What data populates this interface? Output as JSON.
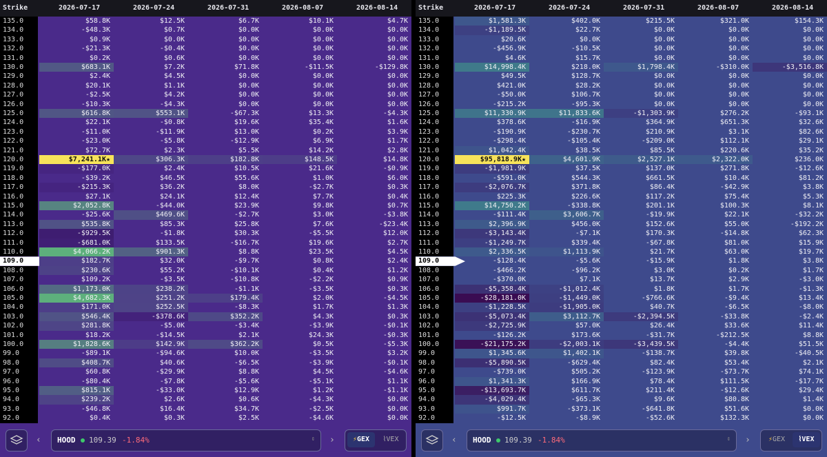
{
  "strike_header": "Strike",
  "footer": {
    "ticker": "HOOD",
    "price": "109.39",
    "change": "-1.84%",
    "modes": [
      "GEX",
      "VEX"
    ]
  },
  "panels": [
    {
      "active": "GEX",
      "dates": [
        "2026-07-17",
        "2026-07-24",
        "2026-07-31",
        "2026-08-07",
        "2026-08-14"
      ],
      "rows": [
        [
          "135.0",
          "$58.8K",
          "$12.5K",
          "$6.7K",
          "$10.1K",
          "$4.7K"
        ],
        [
          "134.0",
          "-$48.3K",
          "$0.7K",
          "$0.0K",
          "$0.0K",
          "$0.0K"
        ],
        [
          "133.0",
          "$0.9K",
          "$0.0K",
          "$0.0K",
          "$0.0K",
          "$0.0K"
        ],
        [
          "132.0",
          "-$21.3K",
          "-$0.4K",
          "$0.0K",
          "$0.0K",
          "$0.0K"
        ],
        [
          "131.0",
          "$0.2K",
          "$0.6K",
          "$0.0K",
          "$0.0K",
          "$0.0K"
        ],
        [
          "130.0",
          "$683.1K",
          "$7.2K",
          "$71.8K",
          "-$11.5K",
          "-$129.8K"
        ],
        [
          "129.0",
          "$2.4K",
          "$4.5K",
          "$0.0K",
          "$0.0K",
          "$0.0K"
        ],
        [
          "128.0",
          "$20.1K",
          "$1.1K",
          "$0.0K",
          "$0.0K",
          "$0.0K"
        ],
        [
          "127.0",
          "-$2.5K",
          "$4.2K",
          "$0.0K",
          "$0.0K",
          "$0.0K"
        ],
        [
          "126.0",
          "-$10.3K",
          "-$4.3K",
          "$0.0K",
          "$0.0K",
          "$0.0K"
        ],
        [
          "125.0",
          "$616.8K",
          "$553.1K",
          "-$67.3K",
          "$13.3K",
          "-$4.3K"
        ],
        [
          "124.0",
          "$22.1K",
          "-$0.8K",
          "$19.6K",
          "$35.4K",
          "$1.6K"
        ],
        [
          "123.0",
          "-$11.0K",
          "-$11.9K",
          "$13.0K",
          "$0.2K",
          "$3.9K"
        ],
        [
          "122.0",
          "-$23.0K",
          "-$5.8K",
          "-$12.9K",
          "$6.9K",
          "$1.7K"
        ],
        [
          "121.0",
          "$72.7K",
          "$2.3K",
          "$5.5K",
          "$14.2K",
          "$2.8K"
        ],
        [
          "120.0",
          "$7,241.1K★",
          "$306.3K",
          "$182.8K",
          "$148.5K",
          "$14.8K"
        ],
        [
          "119.0",
          "-$177.0K",
          "$2.4K",
          "$10.5K",
          "$21.6K",
          "-$0.9K"
        ],
        [
          "118.0",
          "-$39.2K",
          "$46.5K",
          "$55.6K",
          "$1.0K",
          "$6.0K"
        ],
        [
          "117.0",
          "-$215.3K",
          "$36.2K",
          "$8.0K",
          "-$2.7K",
          "$0.3K"
        ],
        [
          "116.0",
          "$27.1K",
          "$24.1K",
          "$12.4K",
          "$7.7K",
          "$0.4K"
        ],
        [
          "115.0",
          "$2,052.8K",
          "-$44.0K",
          "$23.9K",
          "$9.8K",
          "$0.7K"
        ],
        [
          "114.0",
          "-$25.6K",
          "$469.6K",
          "-$2.7K",
          "$3.0K",
          "-$3.8K"
        ],
        [
          "113.0",
          "$535.8K",
          "$85.3K",
          "$25.8K",
          "$7.6K",
          "-$23.4K"
        ],
        [
          "112.0",
          "-$929.5K",
          "-$1.8K",
          "$30.3K",
          "-$5.5K",
          "$12.0K"
        ],
        [
          "111.0",
          "-$681.0K",
          "$133.5K",
          "-$16.7K",
          "$19.6K",
          "$2.7K"
        ],
        [
          "110.0",
          "$4,066.2K",
          "$901.3K",
          "$8.8K",
          "$23.5K",
          "$4.5K"
        ],
        [
          "109.0",
          "$182.7K",
          "$32.0K",
          "-$9.7K",
          "$0.8K",
          "$2.4K"
        ],
        [
          "108.0",
          "$230.6K",
          "$55.2K",
          "-$10.1K",
          "$0.4K",
          "$1.2K"
        ],
        [
          "107.0",
          "$109.2K",
          "-$3.5K",
          "-$10.8K",
          "-$2.2K",
          "$0.9K"
        ],
        [
          "106.0",
          "$1,173.0K",
          "$238.2K",
          "-$1.1K",
          "-$3.5K",
          "$0.3K"
        ],
        [
          "105.0",
          "$4,682.3K",
          "$251.2K",
          "$179.4K",
          "$2.0K",
          "-$4.5K"
        ],
        [
          "104.0",
          "$171.0K",
          "$252.5K",
          "-$8.3K",
          "$1.7K",
          "$1.3K"
        ],
        [
          "103.0",
          "$546.4K",
          "-$378.6K",
          "$352.2K",
          "$4.3K",
          "$0.3K"
        ],
        [
          "102.0",
          "$281.8K",
          "-$5.0K",
          "-$3.4K",
          "-$3.9K",
          "-$0.1K"
        ],
        [
          "101.0",
          "$18.2K",
          "-$14.5K",
          "$2.1K",
          "$24.3K",
          "-$0.3K"
        ],
        [
          "100.0",
          "$1,828.6K",
          "$142.9K",
          "$362.2K",
          "$0.5K",
          "-$5.3K"
        ],
        [
          "99.0",
          "-$89.1K",
          "-$94.6K",
          "$10.0K",
          "-$3.5K",
          "$3.2K"
        ],
        [
          "98.0",
          "$408.7K",
          "$40.6K",
          "-$6.5K",
          "-$3.9K",
          "-$0.1K"
        ],
        [
          "97.0",
          "$60.8K",
          "-$29.9K",
          "$8.8K",
          "$4.5K",
          "-$4.6K"
        ],
        [
          "96.0",
          "-$80.4K",
          "-$7.8K",
          "-$5.6K",
          "-$5.1K",
          "$1.1K"
        ],
        [
          "95.0",
          "$815.1K",
          "-$33.0K",
          "$12.9K",
          "$1.2K",
          "-$1.1K"
        ],
        [
          "94.0",
          "$239.2K",
          "$2.6K",
          "$0.6K",
          "-$4.3K",
          "$0.0K"
        ],
        [
          "93.0",
          "-$46.8K",
          "$16.4K",
          "$34.7K",
          "-$2.5K",
          "$0.0K"
        ],
        [
          "92.0",
          "$0.4K",
          "$0.3K",
          "$2.5K",
          "-$4.6K",
          "$0.0K"
        ]
      ]
    },
    {
      "active": "VEX",
      "dates": [
        "2026-07-17",
        "2026-07-24",
        "2026-07-31",
        "2026-08-07",
        "2026-08-14"
      ],
      "rows": [
        [
          "135.0",
          "$1,581.3K",
          "$402.0K",
          "$215.5K",
          "$321.0K",
          "$154.3K"
        ],
        [
          "134.0",
          "-$1,189.5K",
          "$22.7K",
          "$0.0K",
          "$0.0K",
          "$0.0K"
        ],
        [
          "133.0",
          "$20.6K",
          "$0.0K",
          "$0.0K",
          "$0.0K",
          "$0.0K"
        ],
        [
          "132.0",
          "-$456.9K",
          "-$10.5K",
          "$0.0K",
          "$0.0K",
          "$0.0K"
        ],
        [
          "131.0",
          "$4.6K",
          "$15.7K",
          "$0.0K",
          "$0.0K",
          "$0.0K"
        ],
        [
          "130.0",
          "$14,998.4K",
          "$218.0K",
          "$1,798.4K",
          "-$310.0K",
          "-$3,516.8K"
        ],
        [
          "129.0",
          "$49.5K",
          "$128.7K",
          "$0.0K",
          "$0.0K",
          "$0.0K"
        ],
        [
          "128.0",
          "$421.0K",
          "$28.2K",
          "$0.0K",
          "$0.0K",
          "$0.0K"
        ],
        [
          "127.0",
          "-$50.0K",
          "$106.7K",
          "$0.0K",
          "$0.0K",
          "$0.0K"
        ],
        [
          "126.0",
          "-$215.2K",
          "-$95.3K",
          "$0.0K",
          "$0.0K",
          "$0.0K"
        ],
        [
          "125.0",
          "$11,330.9K",
          "$11,833.6K",
          "-$1,303.9K",
          "$276.2K",
          "-$93.1K"
        ],
        [
          "124.0",
          "$378.6K",
          "-$16.9K",
          "$364.9K",
          "$651.3K",
          "$32.6K"
        ],
        [
          "123.0",
          "-$190.9K",
          "-$230.7K",
          "$210.9K",
          "$3.1K",
          "$82.6K"
        ],
        [
          "122.0",
          "-$298.4K",
          "-$105.4K",
          "-$209.0K",
          "$112.1K",
          "$29.1K"
        ],
        [
          "121.0",
          "$1,042.4K",
          "$38.5K",
          "$85.5K",
          "$220.6K",
          "$35.2K"
        ],
        [
          "120.0",
          "$95,818.9K★",
          "$4,601.9K",
          "$2,527.1K",
          "$2,322.0K",
          "$236.0K"
        ],
        [
          "119.0",
          "-$1,981.9K",
          "$37.5K",
          "$137.0K",
          "$271.8K",
          "-$12.6K"
        ],
        [
          "118.0",
          "-$591.0K",
          "$544.3K",
          "$661.5K",
          "$10.4K",
          "$81.2K"
        ],
        [
          "117.0",
          "-$2,076.7K",
          "$371.8K",
          "$86.4K",
          "-$42.9K",
          "$3.8K"
        ],
        [
          "116.0",
          "$225.3K",
          "$226.6K",
          "$117.2K",
          "$75.4K",
          "$5.3K"
        ],
        [
          "115.0",
          "$14,750.2K",
          "-$338.8K",
          "$201.1K",
          "$100.3K",
          "$8.1K"
        ],
        [
          "114.0",
          "-$111.4K",
          "$3,606.7K",
          "-$19.9K",
          "$22.1K",
          "-$32.2K"
        ],
        [
          "113.0",
          "$2,396.9K",
          "$456.0K",
          "$152.6K",
          "$55.0K",
          "-$192.2K"
        ],
        [
          "112.0",
          "-$3,143.4K",
          "-$7.1K",
          "$170.3K",
          "-$14.8K",
          "$62.3K"
        ],
        [
          "111.0",
          "-$1,249.7K",
          "$339.4K",
          "-$67.8K",
          "$81.0K",
          "$15.9K"
        ],
        [
          "110.0",
          "$2,336.5K",
          "$1,113.9K",
          "$21.7K",
          "$63.0K",
          "$19.7K"
        ],
        [
          "109.0",
          "-$128.4K",
          "-$5.6K",
          "-$15.9K",
          "$1.8K",
          "$3.8K"
        ],
        [
          "108.0",
          "-$466.2K",
          "-$96.2K",
          "$3.0K",
          "$0.2K",
          "$1.7K"
        ],
        [
          "107.0",
          "-$370.0K",
          "$7.1K",
          "$13.7K",
          "$2.9K",
          "-$3.0K"
        ],
        [
          "106.0",
          "-$5,358.4K",
          "-$1,012.4K",
          "$1.8K",
          "$1.7K",
          "-$1.3K"
        ],
        [
          "105.0",
          "-$28,181.0K",
          "-$1,449.0K",
          "-$766.6K",
          "-$9.4K",
          "$13.4K"
        ],
        [
          "104.0",
          "-$1,228.5K",
          "-$1,905.0K",
          "$40.7K",
          "-$6.5K",
          "-$8.0K"
        ],
        [
          "103.0",
          "-$5,073.4K",
          "$3,112.7K",
          "-$2,394.5K",
          "-$33.8K",
          "-$2.4K"
        ],
        [
          "102.0",
          "-$2,725.9K",
          "$57.0K",
          "$26.4K",
          "$33.6K",
          "$11.4K"
        ],
        [
          "101.0",
          "-$126.2K",
          "$173.6K",
          "-$31.7K",
          "-$212.5K",
          "$8.8K"
        ],
        [
          "100.0",
          "-$21,175.2K",
          "-$2,003.1K",
          "-$3,439.5K",
          "-$4.4K",
          "$51.5K"
        ],
        [
          "99.0",
          "$1,345.6K",
          "$1,402.1K",
          "-$138.7K",
          "$39.8K",
          "-$40.5K"
        ],
        [
          "98.0",
          "-$5,890.5K",
          "-$629.4K",
          "$82.4K",
          "$53.4K",
          "$2.1K"
        ],
        [
          "97.0",
          "-$739.0K",
          "$505.2K",
          "-$123.9K",
          "-$73.7K",
          "$74.1K"
        ],
        [
          "96.0",
          "$1,341.3K",
          "$166.9K",
          "$78.4K",
          "$111.5K",
          "-$17.7K"
        ],
        [
          "95.0",
          "-$13,693.7K",
          "$611.7K",
          "$211.4K",
          "-$12.6K",
          "$29.4K"
        ],
        [
          "94.0",
          "-$4,029.4K",
          "-$65.3K",
          "$9.6K",
          "$80.8K",
          "$1.4K"
        ],
        [
          "93.0",
          "$991.7K",
          "-$373.1K",
          "-$641.8K",
          "$51.6K",
          "$0.0K"
        ],
        [
          "92.0",
          "-$12.5K",
          "-$8.9K",
          "-$52.6K",
          "$132.3K",
          "$0.0K"
        ]
      ]
    }
  ]
}
